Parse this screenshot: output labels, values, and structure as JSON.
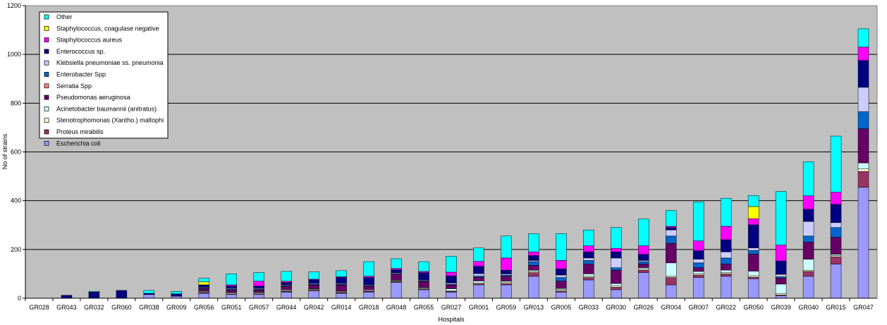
{
  "chart_data": {
    "type": "bar",
    "stacked": true,
    "xlabel": "Hospitals",
    "ylabel": "No of strains",
    "ylim": [
      0,
      1200
    ],
    "yticks": [
      "0",
      "200",
      "400",
      "600",
      "800",
      "1000",
      "1200"
    ],
    "grid": true,
    "legend_position": "top-left",
    "plot_background": "#c0c0c0",
    "categories": [
      "GR028",
      "GR043",
      "GR032",
      "GR060",
      "GR038",
      "GR009",
      "GR056",
      "GR051",
      "GR057",
      "GR044",
      "GR042",
      "GR014",
      "GR018",
      "GR048",
      "GR055",
      "GR027",
      "GR001",
      "GR059",
      "GR013",
      "GR005",
      "GR033",
      "GR030",
      "GR026",
      "GR004",
      "GR007",
      "GR022",
      "GR050",
      "GR039",
      "GR040",
      "GR015",
      "GR047"
    ],
    "series": [
      {
        "name": "Escherichia coli",
        "color": "#9999ff",
        "values": [
          0,
          0,
          0,
          0,
          15,
          8,
          20,
          15,
          15,
          25,
          30,
          20,
          25,
          65,
          35,
          25,
          55,
          55,
          90,
          25,
          75,
          35,
          105,
          55,
          85,
          90,
          80,
          10,
          90,
          140,
          455
        ]
      },
      {
        "name": "Proteus mirabilis",
        "color": "#993366",
        "values": [
          0,
          0,
          0,
          0,
          0,
          0,
          3,
          3,
          3,
          3,
          3,
          3,
          3,
          3,
          3,
          3,
          4,
          5,
          15,
          5,
          10,
          10,
          10,
          30,
          10,
          10,
          6,
          3,
          20,
          30,
          65
        ]
      },
      {
        "name": "Stenotrophomonas (Xantho.) maltophi",
        "color": "#ffffcc",
        "values": [
          0,
          0,
          0,
          0,
          0,
          0,
          3,
          3,
          3,
          3,
          3,
          3,
          3,
          3,
          3,
          3,
          4,
          5,
          5,
          5,
          5,
          5,
          5,
          5,
          5,
          5,
          5,
          5,
          5,
          5,
          10
        ]
      },
      {
        "name": "Acinetobacter baumannii (anitratus)",
        "color": "#ccffff",
        "values": [
          0,
          0,
          0,
          0,
          0,
          0,
          3,
          3,
          3,
          3,
          3,
          3,
          3,
          3,
          3,
          8,
          8,
          5,
          5,
          5,
          10,
          10,
          5,
          55,
          10,
          10,
          20,
          40,
          45,
          5,
          25
        ]
      },
      {
        "name": "Pseudomonas aeruginosa",
        "color": "#660066",
        "values": [
          0,
          0,
          0,
          0,
          0,
          0,
          10,
          10,
          10,
          15,
          15,
          25,
          15,
          25,
          25,
          15,
          15,
          20,
          20,
          30,
          40,
          55,
          15,
          80,
          15,
          25,
          70,
          25,
          70,
          70,
          140
        ]
      },
      {
        "name": "Serratia Spp",
        "color": "#ff8080",
        "values": [
          0,
          0,
          0,
          0,
          0,
          0,
          0,
          0,
          0,
          0,
          0,
          0,
          0,
          0,
          0,
          0,
          0,
          0,
          0,
          0,
          0,
          0,
          0,
          0,
          0,
          0,
          0,
          0,
          0,
          0,
          0
        ]
      },
      {
        "name": "Enterobacter Spp",
        "color": "#0066cc",
        "values": [
          0,
          0,
          0,
          0,
          0,
          0,
          3,
          3,
          3,
          3,
          3,
          3,
          3,
          3,
          3,
          3,
          5,
          5,
          15,
          15,
          15,
          10,
          10,
          30,
          20,
          25,
          15,
          5,
          25,
          40,
          70
        ]
      },
      {
        "name": "Klebsiella pneumoniae ss. pneumonia",
        "color": "#ccccff",
        "values": [
          0,
          0,
          0,
          0,
          0,
          0,
          3,
          3,
          3,
          3,
          3,
          3,
          3,
          3,
          3,
          5,
          10,
          5,
          5,
          10,
          10,
          40,
          5,
          25,
          15,
          25,
          10,
          10,
          60,
          20,
          100
        ]
      },
      {
        "name": "Enterococcus sp.",
        "color": "#000080",
        "values": [
          0,
          12,
          25,
          32,
          5,
          10,
          10,
          10,
          10,
          10,
          15,
          25,
          30,
          12,
          30,
          30,
          30,
          15,
          20,
          25,
          25,
          25,
          25,
          10,
          35,
          50,
          95,
          55,
          50,
          75,
          110
        ]
      },
      {
        "name": "Staphylococcus aureus",
        "color": "#ff00ff",
        "values": [
          0,
          0,
          0,
          0,
          0,
          0,
          0,
          5,
          20,
          5,
          3,
          3,
          5,
          5,
          5,
          15,
          20,
          50,
          15,
          35,
          25,
          15,
          35,
          5,
          40,
          55,
          25,
          65,
          55,
          50,
          55
        ]
      },
      {
        "name": "Staphylococcus, coagulase negative",
        "color": "#ffff00",
        "values": [
          0,
          0,
          0,
          0,
          0,
          0,
          12,
          0,
          0,
          0,
          0,
          0,
          0,
          0,
          0,
          0,
          0,
          0,
          0,
          0,
          0,
          0,
          0,
          0,
          0,
          0,
          50,
          0,
          0,
          0,
          0
        ]
      },
      {
        "name": "Other",
        "color": "#00ffff",
        "values": [
          0,
          0,
          3,
          0,
          12,
          10,
          15,
          45,
          35,
          40,
          30,
          25,
          60,
          40,
          40,
          65,
          55,
          90,
          75,
          110,
          65,
          85,
          110,
          65,
          160,
          115,
          45,
          220,
          140,
          230,
          75
        ]
      }
    ]
  }
}
